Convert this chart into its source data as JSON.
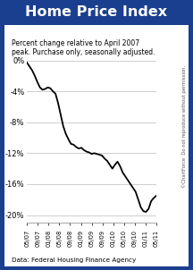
{
  "title": "Home Price Index",
  "title_bg": "#1b3f8f",
  "title_color": "#ffffff",
  "subtitle": "Percent change relative to April 2007\npeak. Purchase only, seasonally adjusted.",
  "source": "Data: Federal Housing Finance Agency",
  "watermark": "©ChartForce  Do not reproduce without permission.",
  "ylabel_ticks": [
    "0%",
    "-4%",
    "-8%",
    "-12%",
    "-16%",
    "-20%"
  ],
  "ytick_vals": [
    0,
    -4,
    -8,
    -12,
    -16,
    -20
  ],
  "xlabels": [
    "05/07",
    "09/07",
    "01/08",
    "05/08",
    "09/08",
    "01/09",
    "05/09",
    "09/09",
    "01/10",
    "05/10",
    "09/10",
    "01/11",
    "05/11"
  ],
  "line_color": "#000000",
  "border_color": "#1b3f8f",
  "background_color": "#ffffff",
  "x_values": [
    0,
    1,
    2,
    3,
    4,
    5,
    6,
    7,
    8,
    9,
    10,
    11,
    12,
    13,
    14,
    15,
    16,
    17,
    18,
    19,
    20,
    21,
    22,
    23,
    24,
    25,
    26,
    27,
    28,
    29,
    30,
    31,
    32,
    33,
    34,
    35,
    36,
    37,
    38,
    39,
    40,
    41,
    42,
    43,
    44,
    45,
    46,
    47,
    48,
    49,
    50
  ],
  "y_values": [
    -0.3,
    -0.8,
    -1.3,
    -2.0,
    -2.8,
    -3.5,
    -3.8,
    -3.7,
    -3.5,
    -3.6,
    -4.0,
    -4.3,
    -5.5,
    -7.0,
    -8.5,
    -9.5,
    -10.2,
    -10.8,
    -10.9,
    -11.2,
    -11.4,
    -11.3,
    -11.6,
    -11.8,
    -11.9,
    -12.1,
    -12.0,
    -12.1,
    -12.2,
    -12.3,
    -12.7,
    -13.0,
    -13.5,
    -14.0,
    -13.5,
    -13.1,
    -13.7,
    -14.5,
    -15.0,
    -15.5,
    -16.0,
    -16.5,
    -17.0,
    -18.0,
    -19.0,
    -19.5,
    -19.6,
    -19.2,
    -18.2,
    -17.8,
    -17.5
  ]
}
